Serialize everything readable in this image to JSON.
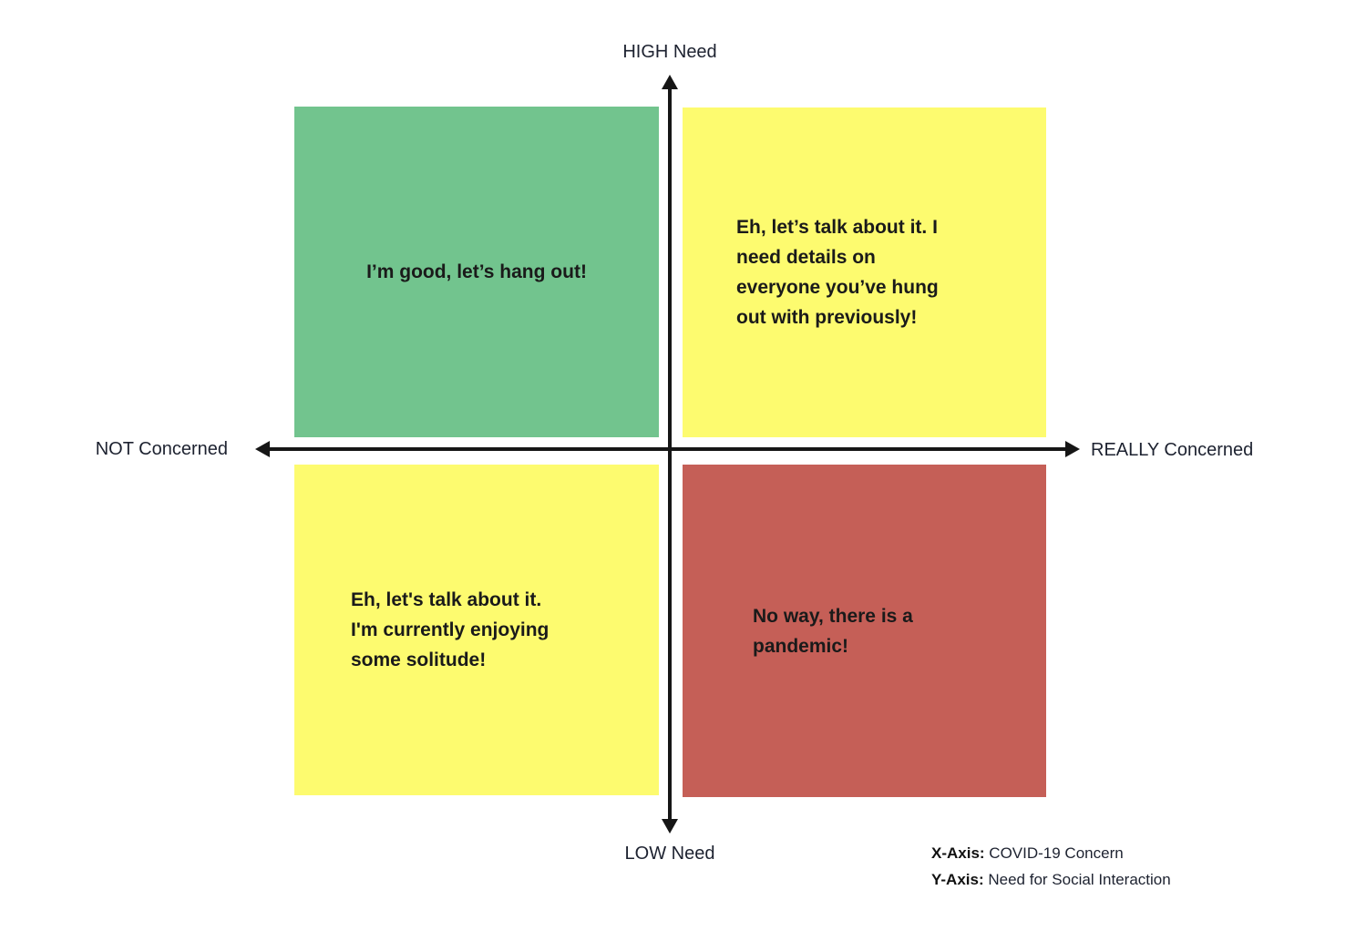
{
  "axes": {
    "top_label": "HIGH Need",
    "bottom_label": "LOW Need",
    "left_label": "NOT Concerned",
    "right_label": "REALLY Concerned"
  },
  "quadrants": {
    "top_left": {
      "name": "high-need-not-concerned",
      "color": "#72c48e",
      "text": "I’m good, let’s hang out!"
    },
    "top_right": {
      "name": "high-need-really-concerned",
      "color": "#fdfb6f",
      "text": "Eh, let’s talk about it. I\nneed details on\neveryone you’ve hung\nout with previously!"
    },
    "bottom_left": {
      "name": "low-need-not-concerned",
      "color": "#fdfb6f",
      "text": "Eh, let's talk about it.\nI'm currently enjoying\nsome solitude!"
    },
    "bottom_right": {
      "name": "low-need-really-concerned",
      "color": "#c55f57",
      "text": "No way, there is a\npandemic!"
    }
  },
  "legend": {
    "x_label": "X-Axis:",
    "x_value": " COVID-19 Concern",
    "y_label": "Y-Axis:",
    "y_value": " Need for Social Interaction"
  },
  "colors": {
    "quadrant_green": "#72c48e",
    "quadrant_yellow": "#fdfb6f",
    "quadrant_red": "#c55f57",
    "axis_line": "#161616",
    "text": "#1a1a1a"
  }
}
